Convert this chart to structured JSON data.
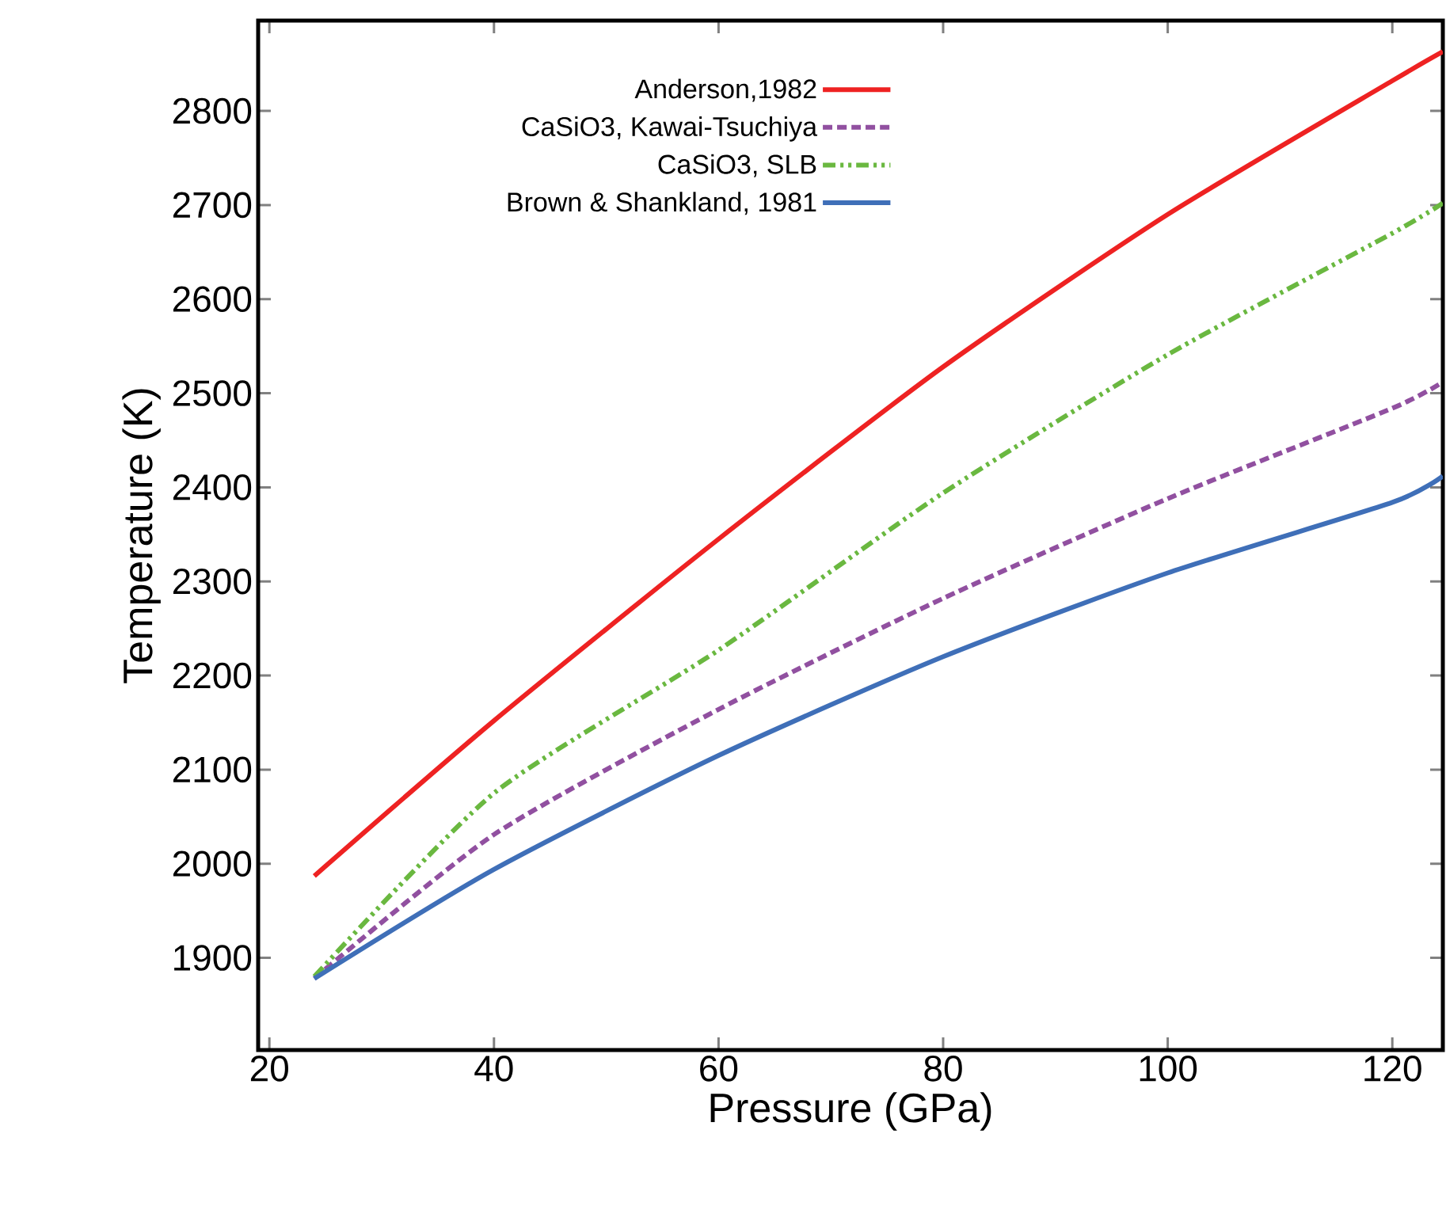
{
  "chart_data": {
    "type": "line",
    "xlabel": "Pressure (GPa)",
    "ylabel": "Temperature (K)",
    "xlim": [
      19,
      124.5
    ],
    "ylim": [
      1802,
      2896
    ],
    "xticks": [
      20,
      40,
      60,
      80,
      100,
      120
    ],
    "yticks": [
      1900,
      2000,
      2100,
      2200,
      2300,
      2400,
      2500,
      2600,
      2700,
      2800
    ],
    "grid": false,
    "legend": "top",
    "marker": "none",
    "x": [
      24,
      40,
      60,
      80,
      100,
      120,
      124.5
    ],
    "series": [
      {
        "name": "Anderson,1982",
        "color": "#ee2222",
        "line_style": "solid",
        "values": [
          1987,
          2152,
          2345,
          2528,
          2690,
          2832,
          2863
        ]
      },
      {
        "name": "CaSiO3, Kawai-Tsuchiya",
        "color": "#9150a0",
        "line_style": "dashed",
        "values": [
          1878,
          2031,
          2164,
          2282,
          2388,
          2484,
          2512
        ]
      },
      {
        "name": "CaSiO3, SLB",
        "color": "#6ab840",
        "line_style": "dashdotdotted",
        "values": [
          1880,
          2075,
          2227,
          2394,
          2541,
          2670,
          2702
        ]
      },
      {
        "name": "Brown & Shankland, 1981",
        "color": "#3f6fb8",
        "line_style": "solid",
        "values": [
          1878,
          1994,
          2115,
          2220,
          2309,
          2384,
          2412
        ]
      }
    ]
  }
}
